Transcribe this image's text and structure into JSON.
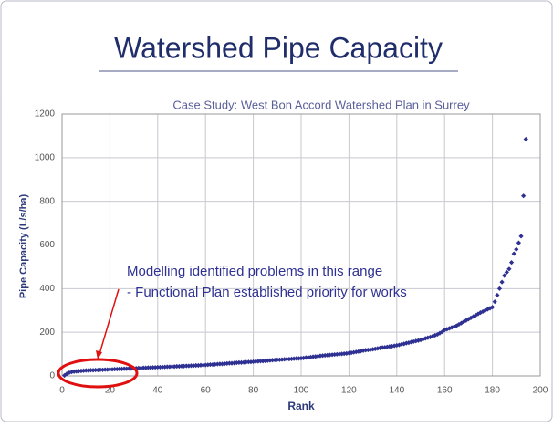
{
  "slide_title": "Watershed Pipe Capacity",
  "chart_data": {
    "type": "scatter",
    "title": "Case Study: West Bon Accord Watershed Plan in Surrey",
    "x_label": "Rank",
    "y_label": "Pipe Capacity (L/s/ha)",
    "annotation": [
      "Modelling identified problems in this range",
      "- Functional Plan established priority for works"
    ],
    "color": "#2e3192",
    "grid": true,
    "xlim": [
      0,
      200
    ],
    "xticks": [
      0,
      20,
      40,
      60,
      80,
      100,
      120,
      140,
      160,
      180,
      200
    ],
    "ylim": [
      0,
      1200
    ],
    "yticks": [
      0,
      200,
      400,
      600,
      800,
      1000,
      1200
    ],
    "x": [
      1,
      2,
      3,
      4,
      5,
      6,
      7,
      8,
      9,
      10,
      11,
      12,
      13,
      14,
      15,
      16,
      17,
      18,
      19,
      20,
      21,
      22,
      23,
      24,
      25,
      26,
      27,
      28,
      29,
      30,
      31,
      32,
      33,
      34,
      35,
      36,
      37,
      38,
      39,
      40,
      41,
      42,
      43,
      44,
      45,
      46,
      47,
      48,
      49,
      50,
      51,
      52,
      53,
      54,
      55,
      56,
      57,
      58,
      59,
      60,
      61,
      62,
      63,
      64,
      65,
      66,
      67,
      68,
      69,
      70,
      71,
      72,
      73,
      74,
      75,
      76,
      77,
      78,
      79,
      80,
      81,
      82,
      83,
      84,
      85,
      86,
      87,
      88,
      89,
      90,
      91,
      92,
      93,
      94,
      95,
      96,
      97,
      98,
      99,
      100,
      101,
      102,
      103,
      104,
      105,
      106,
      107,
      108,
      109,
      110,
      111,
      112,
      113,
      114,
      115,
      116,
      117,
      118,
      119,
      120,
      121,
      122,
      123,
      124,
      125,
      126,
      127,
      128,
      129,
      130,
      131,
      132,
      133,
      134,
      135,
      136,
      137,
      138,
      139,
      140,
      141,
      142,
      143,
      144,
      145,
      146,
      147,
      148,
      149,
      150,
      151,
      152,
      153,
      154,
      155,
      156,
      157,
      158,
      159,
      160,
      161,
      162,
      163,
      164,
      165,
      166,
      167,
      168,
      169,
      170,
      171,
      172,
      173,
      174,
      175,
      176,
      177,
      178,
      179,
      180,
      181,
      182,
      183,
      184,
      185,
      186,
      187,
      188,
      189,
      190,
      191,
      192,
      193,
      194
    ],
    "values": [
      2,
      10,
      15,
      18,
      20,
      21,
      22,
      23,
      24,
      25,
      25,
      26,
      26,
      27,
      27,
      28,
      28,
      29,
      29,
      30,
      30,
      31,
      31,
      32,
      32,
      33,
      33,
      34,
      34,
      35,
      35,
      36,
      36,
      37,
      37,
      38,
      38,
      39,
      39,
      40,
      40,
      41,
      41,
      42,
      42,
      43,
      43,
      44,
      44,
      45,
      45,
      46,
      46,
      47,
      47,
      48,
      48,
      49,
      49,
      50,
      51,
      52,
      52,
      53,
      54,
      55,
      55,
      56,
      57,
      58,
      58,
      59,
      60,
      61,
      61,
      62,
      63,
      64,
      64,
      65,
      66,
      67,
      68,
      68,
      69,
      70,
      71,
      72,
      73,
      74,
      74,
      75,
      76,
      77,
      77,
      78,
      79,
      80,
      80,
      81,
      82,
      84,
      85,
      86,
      88,
      89,
      90,
      92,
      93,
      94,
      95,
      96,
      97,
      98,
      99,
      100,
      101,
      102,
      103,
      105,
      106,
      108,
      110,
      112,
      114,
      116,
      118,
      119,
      120,
      122,
      124,
      126,
      128,
      130,
      131,
      133,
      135,
      136,
      138,
      140,
      142,
      145,
      147,
      150,
      152,
      155,
      157,
      160,
      162,
      165,
      168,
      172,
      175,
      178,
      182,
      186,
      190,
      196,
      202,
      210,
      214,
      218,
      222,
      226,
      230,
      236,
      242,
      248,
      254,
      260,
      266,
      272,
      278,
      284,
      290,
      295,
      300,
      305,
      310,
      315,
      340,
      370,
      400,
      430,
      460,
      475,
      490,
      520,
      560,
      580,
      610,
      640,
      825,
      1085
    ]
  }
}
